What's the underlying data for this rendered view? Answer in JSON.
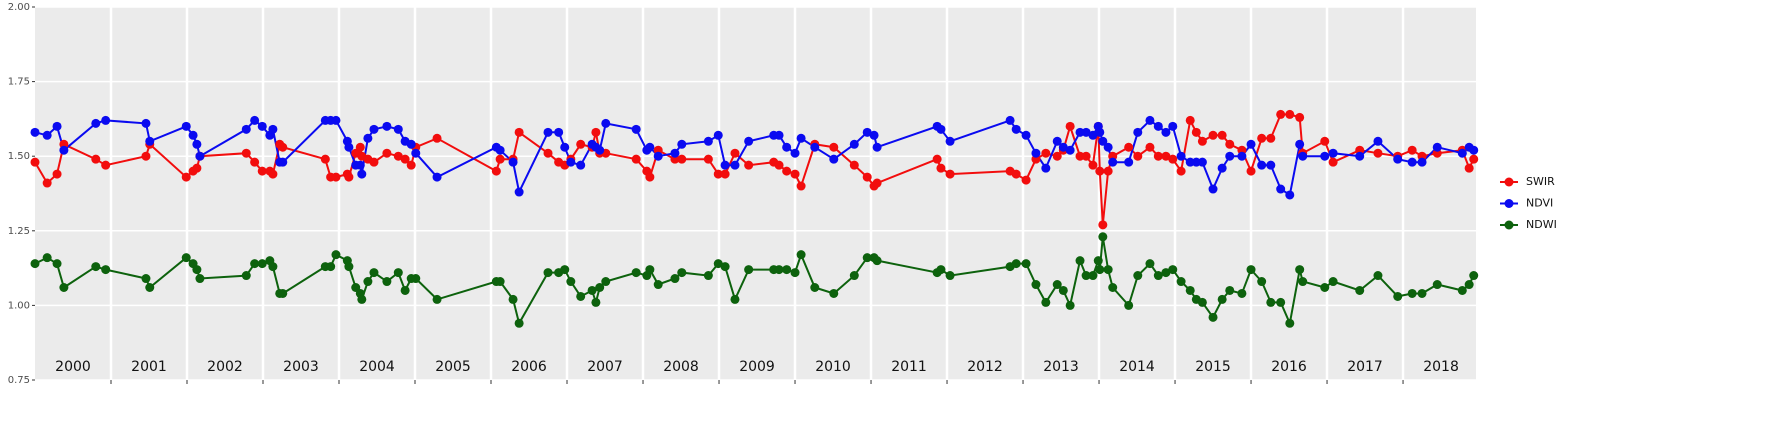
{
  "chart_data": {
    "type": "line",
    "x": [
      2000.0,
      2000.16,
      2000.29,
      2000.38,
      2000.8,
      2000.93,
      2001.46,
      2001.51,
      2001.99,
      2002.08,
      2002.13,
      2002.17,
      2002.78,
      2002.89,
      2002.99,
      2003.09,
      2003.13,
      2003.22,
      2003.26,
      2003.82,
      2003.89,
      2003.96,
      2004.11,
      2004.13,
      2004.22,
      2004.28,
      2004.3,
      2004.38,
      2004.46,
      2004.63,
      2004.78,
      2004.87,
      2004.95,
      2005.01,
      2005.29,
      2006.07,
      2006.12,
      2006.29,
      2006.37,
      2006.75,
      2006.89,
      2006.97,
      2007.05,
      2007.18,
      2007.33,
      2007.38,
      2007.43,
      2007.51,
      2007.91,
      2008.05,
      2008.09,
      2008.2,
      2008.42,
      2008.51,
      2008.86,
      2008.99,
      2009.08,
      2009.21,
      2009.39,
      2009.72,
      2009.79,
      2009.89,
      2010.0,
      2010.08,
      2010.26,
      2010.51,
      2010.78,
      2010.95,
      2011.04,
      2011.08,
      2011.87,
      2011.92,
      2012.04,
      2012.83,
      2012.91,
      2013.04,
      2013.17,
      2013.3,
      2013.45,
      2013.53,
      2013.62,
      2013.75,
      2013.83,
      2013.92,
      2013.99,
      2014.01,
      2014.05,
      2014.12,
      2014.18,
      2014.39,
      2014.51,
      2014.67,
      2014.78,
      2014.88,
      2014.97,
      2015.08,
      2015.2,
      2015.28,
      2015.36,
      2015.5,
      2015.62,
      2015.72,
      2015.88,
      2016.0,
      2016.14,
      2016.26,
      2016.39,
      2016.51,
      2016.64,
      2016.68,
      2016.97,
      2017.08,
      2017.43,
      2017.67,
      2017.93,
      2018.12,
      2018.25,
      2018.45,
      2018.78,
      2018.87,
      2018.93
    ],
    "series": [
      {
        "name": "SWIR",
        "color": "#f20d0d",
        "values": [
          1.48,
          1.41,
          1.44,
          1.54,
          1.49,
          1.47,
          1.5,
          1.54,
          1.43,
          1.45,
          1.46,
          1.5,
          1.51,
          1.48,
          1.45,
          1.45,
          1.44,
          1.54,
          1.53,
          1.49,
          1.43,
          1.43,
          1.44,
          1.43,
          1.51,
          1.53,
          1.5,
          1.49,
          1.48,
          1.51,
          1.5,
          1.49,
          1.47,
          1.53,
          1.56,
          1.45,
          1.49,
          1.49,
          1.58,
          1.51,
          1.48,
          1.47,
          1.49,
          1.54,
          1.53,
          1.58,
          1.51,
          1.51,
          1.49,
          1.45,
          1.43,
          1.52,
          1.49,
          1.49,
          1.49,
          1.44,
          1.44,
          1.51,
          1.47,
          1.48,
          1.47,
          1.45,
          1.44,
          1.4,
          1.54,
          1.53,
          1.47,
          1.43,
          1.4,
          1.41,
          1.49,
          1.46,
          1.44,
          1.45,
          1.44,
          1.42,
          1.49,
          1.51,
          1.5,
          1.52,
          1.6,
          1.5,
          1.5,
          1.47,
          1.6,
          1.45,
          1.27,
          1.45,
          1.5,
          1.53,
          1.5,
          1.53,
          1.5,
          1.5,
          1.49,
          1.45,
          1.62,
          1.58,
          1.55,
          1.57,
          1.57,
          1.54,
          1.52,
          1.45,
          1.56,
          1.56,
          1.64,
          1.64,
          1.63,
          1.51,
          1.55,
          1.48,
          1.52,
          1.51,
          1.5,
          1.52,
          1.5,
          1.51,
          1.52,
          1.46,
          1.49
        ]
      },
      {
        "name": "NDVI",
        "color": "#0a0af0",
        "values": [
          1.58,
          1.57,
          1.6,
          1.52,
          1.61,
          1.62,
          1.61,
          1.55,
          1.6,
          1.57,
          1.54,
          1.5,
          1.59,
          1.62,
          1.6,
          1.57,
          1.59,
          1.48,
          1.48,
          1.62,
          1.62,
          1.62,
          1.55,
          1.53,
          1.47,
          1.47,
          1.44,
          1.56,
          1.59,
          1.6,
          1.59,
          1.55,
          1.54,
          1.51,
          1.43,
          1.53,
          1.52,
          1.48,
          1.38,
          1.58,
          1.58,
          1.53,
          1.48,
          1.47,
          1.54,
          1.53,
          1.52,
          1.61,
          1.59,
          1.52,
          1.53,
          1.5,
          1.51,
          1.54,
          1.55,
          1.57,
          1.47,
          1.47,
          1.55,
          1.57,
          1.57,
          1.53,
          1.51,
          1.56,
          1.53,
          1.49,
          1.54,
          1.58,
          1.57,
          1.53,
          1.6,
          1.59,
          1.55,
          1.62,
          1.59,
          1.57,
          1.51,
          1.46,
          1.55,
          1.53,
          1.52,
          1.58,
          1.58,
          1.57,
          1.6,
          1.58,
          1.55,
          1.53,
          1.48,
          1.48,
          1.58,
          1.62,
          1.6,
          1.58,
          1.6,
          1.5,
          1.48,
          1.48,
          1.48,
          1.39,
          1.46,
          1.5,
          1.5,
          1.54,
          1.47,
          1.47,
          1.39,
          1.37,
          1.54,
          1.5,
          1.5,
          1.51,
          1.5,
          1.55,
          1.49,
          1.48,
          1.48,
          1.53,
          1.51,
          1.53,
          1.52
        ]
      },
      {
        "name": "NDWI",
        "color": "#0d620d",
        "values": [
          1.14,
          1.16,
          1.14,
          1.06,
          1.13,
          1.12,
          1.09,
          1.06,
          1.16,
          1.14,
          1.12,
          1.09,
          1.1,
          1.14,
          1.14,
          1.15,
          1.13,
          1.04,
          1.04,
          1.13,
          1.13,
          1.17,
          1.15,
          1.13,
          1.06,
          1.04,
          1.02,
          1.08,
          1.11,
          1.08,
          1.11,
          1.05,
          1.09,
          1.09,
          1.02,
          1.08,
          1.08,
          1.02,
          0.94,
          1.11,
          1.11,
          1.12,
          1.08,
          1.03,
          1.05,
          1.01,
          1.06,
          1.08,
          1.11,
          1.1,
          1.12,
          1.07,
          1.09,
          1.11,
          1.1,
          1.14,
          1.13,
          1.02,
          1.12,
          1.12,
          1.12,
          1.12,
          1.11,
          1.17,
          1.06,
          1.04,
          1.1,
          1.16,
          1.16,
          1.15,
          1.11,
          1.12,
          1.1,
          1.13,
          1.14,
          1.14,
          1.07,
          1.01,
          1.07,
          1.05,
          1.0,
          1.15,
          1.1,
          1.1,
          1.15,
          1.12,
          1.23,
          1.12,
          1.06,
          1.0,
          1.1,
          1.14,
          1.1,
          1.11,
          1.12,
          1.08,
          1.05,
          1.02,
          1.01,
          0.96,
          1.02,
          1.05,
          1.04,
          1.12,
          1.08,
          1.01,
          1.01,
          0.94,
          1.12,
          1.08,
          1.06,
          1.08,
          1.05,
          1.1,
          1.03,
          1.04,
          1.04,
          1.07,
          1.05,
          1.07,
          1.1
        ]
      }
    ],
    "xlim": [
      2000,
      2018.96
    ],
    "xticks": [
      {
        "value": 2000.5,
        "label": "2000"
      },
      {
        "value": 2001.5,
        "label": "2001"
      },
      {
        "value": 2002.5,
        "label": "2002"
      },
      {
        "value": 2003.5,
        "label": "2003"
      },
      {
        "value": 2004.5,
        "label": "2004"
      },
      {
        "value": 2005.5,
        "label": "2005"
      },
      {
        "value": 2006.5,
        "label": "2006"
      },
      {
        "value": 2007.5,
        "label": "2007"
      },
      {
        "value": 2008.5,
        "label": "2008"
      },
      {
        "value": 2009.5,
        "label": "2009"
      },
      {
        "value": 2010.5,
        "label": "2010"
      },
      {
        "value": 2011.5,
        "label": "2011"
      },
      {
        "value": 2012.5,
        "label": "2012"
      },
      {
        "value": 2013.5,
        "label": "2013"
      },
      {
        "value": 2014.5,
        "label": "2014"
      },
      {
        "value": 2015.5,
        "label": "2015"
      },
      {
        "value": 2016.5,
        "label": "2016"
      },
      {
        "value": 2017.5,
        "label": "2017"
      },
      {
        "value": 2018.5,
        "label": "2018"
      }
    ],
    "xgrid": [
      2001,
      2002,
      2003,
      2004,
      2005,
      2006,
      2007,
      2008,
      2009,
      2010,
      2011,
      2012,
      2013,
      2014,
      2015,
      2016,
      2017,
      2018
    ],
    "ylim": [
      0.75,
      2.0
    ],
    "yticks": [
      0.75,
      {
        "value": 1.0,
        "label": "1.00"
      },
      1.25,
      {
        "value": 1.5,
        "label": "1.50"
      },
      1.75,
      {
        "value": 2.0,
        "label": "2.00"
      }
    ],
    "grid": true,
    "legend": "right"
  }
}
